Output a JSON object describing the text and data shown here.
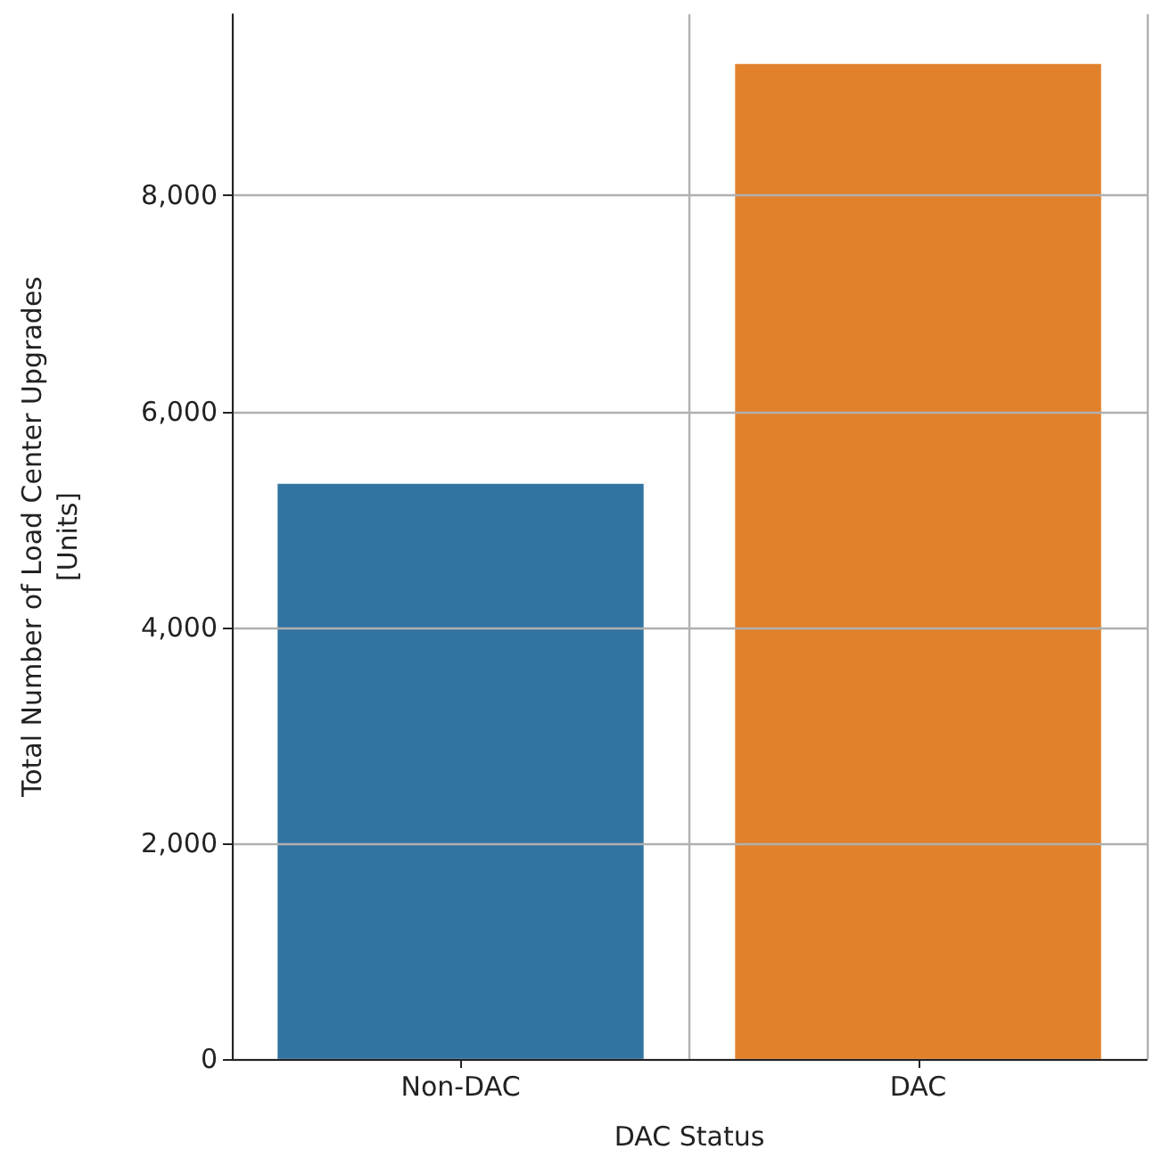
{
  "chart_data": {
    "type": "bar",
    "xlabel": "DAC Status",
    "ylabel": "Total Number of Load Center Upgrades\n[Units]",
    "categories": [
      "Non-DAC",
      "DAC"
    ],
    "values": [
      5330,
      9220
    ],
    "colors": [
      "#3274a1",
      "#e1812c"
    ],
    "ylim": [
      0,
      9680
    ],
    "yticks": [
      {
        "value": 0,
        "label": "0"
      },
      {
        "value": 2000,
        "label": "2,000"
      },
      {
        "value": 4000,
        "label": "4,000"
      },
      {
        "value": 6000,
        "label": "6,000"
      },
      {
        "value": 8000,
        "label": "8,000"
      }
    ],
    "grid": true
  }
}
